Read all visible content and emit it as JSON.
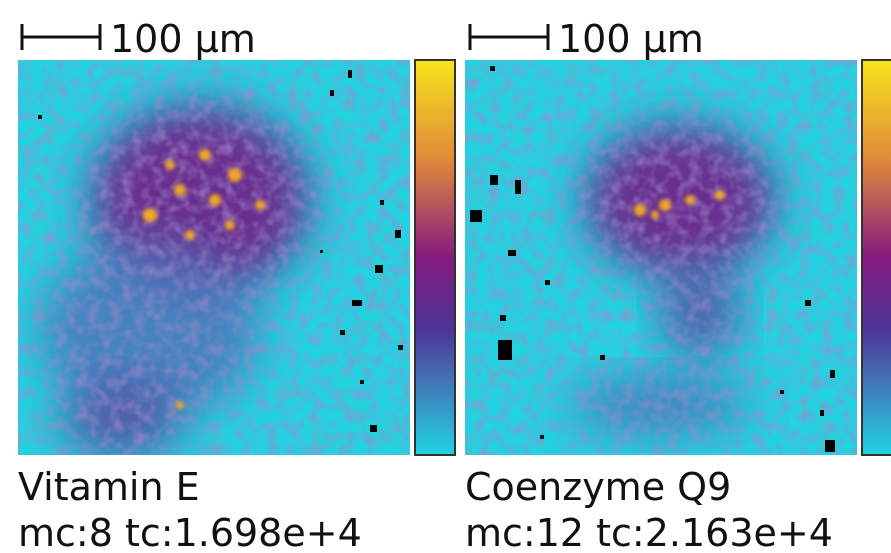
{
  "panels": [
    {
      "scale_bar": "100 µm",
      "label": "Vitamin E",
      "stats": "mc:8 tc:1.698e+4"
    },
    {
      "scale_bar": "100 µm",
      "label": "Coenzyme Q9",
      "stats": "mc:12 tc:2.163e+4"
    }
  ]
}
